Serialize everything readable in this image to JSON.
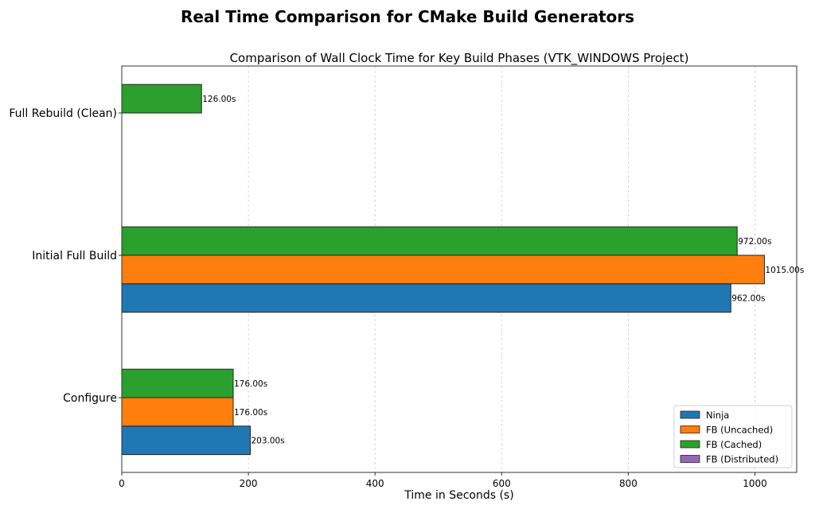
{
  "chart_data": {
    "type": "bar",
    "orientation": "horizontal",
    "suptitle": "Real Time Comparison for CMake Build Generators",
    "title": "Comparison of Wall Clock Time for Key Build Phases (VTK_WINDOWS Project)",
    "xlabel": "Time in Seconds (s)",
    "ylabel": "",
    "xlim": [
      0,
      1066
    ],
    "xticks": [
      0,
      200,
      400,
      600,
      800,
      1000
    ],
    "xtick_labels": [
      "0",
      "200",
      "400",
      "600",
      "800",
      "1000"
    ],
    "grid": "x-dashed",
    "categories": [
      "Configure",
      "Initial Full Build",
      "Full Rebuild (Clean)"
    ],
    "series": [
      {
        "name": "Ninja",
        "color": "#1f77b4",
        "values": [
          203.0,
          962.0,
          null
        ],
        "labels": [
          "203.00s",
          "962.00s",
          null
        ]
      },
      {
        "name": "FB (Uncached)",
        "color": "#ff7f0e",
        "values": [
          176.0,
          1015.0,
          null
        ],
        "labels": [
          "176.00s",
          "1015.00s",
          null
        ]
      },
      {
        "name": "FB (Cached)",
        "color": "#2ca02c",
        "values": [
          176.0,
          972.0,
          126.0
        ],
        "labels": [
          "176.00s",
          "972.00s",
          "126.00s"
        ]
      },
      {
        "name": "FB (Distributed)",
        "color": "#9467bd",
        "values": [
          null,
          null,
          null
        ],
        "labels": [
          null,
          null,
          null
        ]
      }
    ],
    "legend": "lower-right"
  }
}
